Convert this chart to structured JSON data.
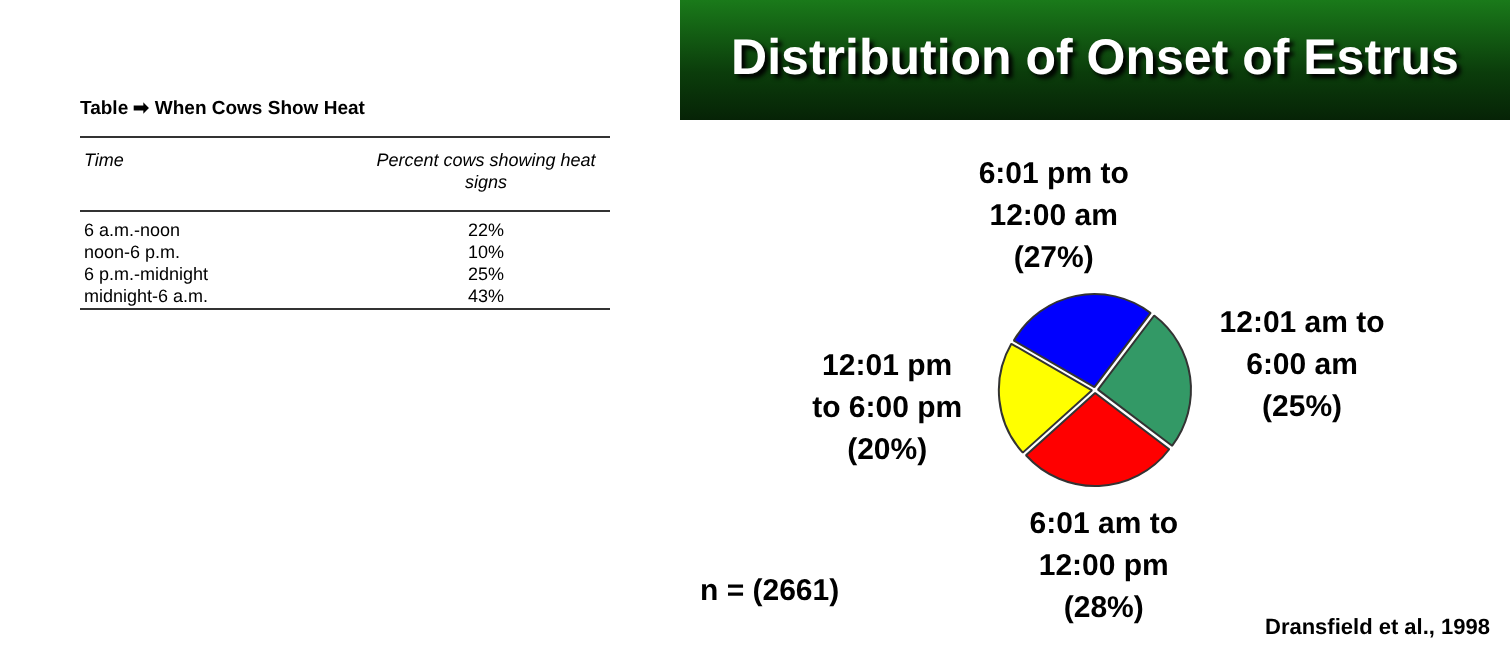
{
  "chart_data": [
    {
      "type": "other",
      "title": "Table ➡ When Cows Show Heat",
      "annotations": [
        "Time",
        "Percent cows showing heat signs",
        "6 a.m.-noon",
        "22%",
        "noon-6 p.m.",
        "10%",
        "6 p.m.-midnight",
        "25%",
        "midnight-6 a.m.",
        "43%"
      ]
    },
    {
      "type": "pie",
      "title": "Distribution of Onset of Estrus",
      "categories": [
        "6:01 pm to\n12:00 am",
        "12:01 am to\n6:00 am",
        "6:01 am to\n12:00 pm",
        "12:01 pm\nto 6:00 pm"
      ],
      "values": [
        27,
        25,
        28,
        20
      ],
      "colors": [
        "#0000ff",
        "#339966",
        "#ff0000",
        "#ffff00"
      ],
      "value_labels": [
        "(27%)",
        "(25%)",
        "(28%)",
        "(20%)"
      ],
      "annotations": [
        "n = (2661)",
        "Dransfield et al., 1998"
      ]
    }
  ]
}
